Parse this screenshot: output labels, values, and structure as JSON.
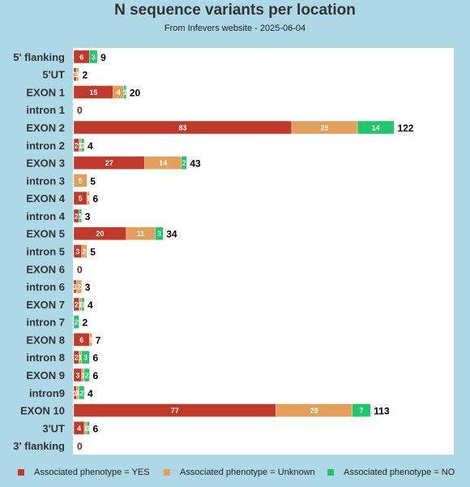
{
  "title": "N sequence variants per location",
  "subtitle": "From Infevers website - 2025-06-04",
  "colors": {
    "yes": "#c0392b",
    "unknown": "#e39e5a",
    "no": "#1fc76a",
    "background": "#add8e6",
    "plot": "#ffffff"
  },
  "legend": [
    {
      "label": "Associated phenotype = YES",
      "color": "#c0392b"
    },
    {
      "label": "Associated phenotype = Unknown",
      "color": "#e39e5a"
    },
    {
      "label": "Associated phenotype = NO",
      "color": "#1fc76a"
    }
  ],
  "chart_data": {
    "type": "bar",
    "orientation": "horizontal",
    "stacked": true,
    "categories": [
      "5' flanking",
      "5'UT",
      "EXON 1",
      "intron 1",
      "EXON 2",
      "intron 2",
      "EXON 3",
      "intron 3",
      "EXON 4",
      "intron 4",
      "EXON 5",
      "intron 5",
      "EXON 6",
      "intron 6",
      "EXON 7",
      "intron 7",
      "EXON 8",
      "intron 8",
      "EXON 9",
      "intron9",
      "EXON 10",
      "3'UT",
      "3' flanking"
    ],
    "series": [
      {
        "name": "Associated phenotype = YES",
        "values": [
          6,
          1,
          15,
          0,
          83,
          2,
          27,
          0,
          5,
          2,
          20,
          3,
          0,
          1,
          2,
          0,
          6,
          2,
          3,
          1,
          77,
          4,
          0
        ]
      },
      {
        "name": "Associated phenotype = Unknown",
        "values": [
          0,
          1,
          4,
          0,
          25,
          1,
          14,
          5,
          1,
          0,
          11,
          2,
          0,
          2,
          1,
          0,
          1,
          1,
          1,
          1,
          29,
          1,
          0
        ]
      },
      {
        "name": "Associated phenotype = NO",
        "values": [
          3,
          0,
          1,
          0,
          14,
          1,
          2,
          0,
          0,
          1,
          3,
          0,
          0,
          0,
          1,
          2,
          0,
          3,
          2,
          2,
          7,
          1,
          0
        ]
      }
    ],
    "totals": [
      9,
      2,
      20,
      0,
      122,
      4,
      43,
      5,
      6,
      3,
      34,
      5,
      0,
      3,
      4,
      2,
      7,
      6,
      6,
      4,
      113,
      6,
      0
    ],
    "xlim": [
      0,
      145
    ],
    "legend_position": "bottom",
    "grid": false
  }
}
